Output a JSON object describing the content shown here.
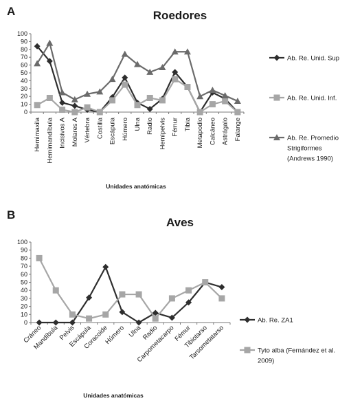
{
  "chart_data": [
    {
      "panel": "A",
      "type": "line",
      "title": "Roedores",
      "xlabel": "Unidades anatómicas",
      "ylabel": "",
      "ylim": [
        0,
        100
      ],
      "yticks": [
        0,
        10,
        20,
        30,
        40,
        50,
        60,
        70,
        80,
        90,
        100
      ],
      "grid": false,
      "legend_position": "right",
      "categories": [
        "Hemimaxila",
        "Hemimandíbula",
        "Incisivos A",
        "Molares A",
        "Vértebra",
        "Costilla",
        "Escápula",
        "Húmero",
        "Ulna",
        "Radio",
        "Hemipelvis",
        "Fémur",
        "Tibia",
        "Metapodio",
        "Calcáneo",
        "Astrágalo",
        "Falange"
      ],
      "series": [
        {
          "name": "Ab. Re. Unid. Sup",
          "marker": "diamond",
          "color": "#2e2e2e",
          "values": [
            84,
            65,
            12,
            8,
            3,
            0,
            19,
            44,
            12,
            4,
            17,
            51,
            32,
            0,
            25,
            17,
            0
          ]
        },
        {
          "name": "Ab. Re. Unid. Inf.",
          "marker": "square",
          "color": "#a6a6a6",
          "values": [
            9,
            18,
            3,
            0,
            6,
            0,
            15,
            35,
            9,
            18,
            15,
            42,
            32,
            0,
            10,
            14,
            0
          ]
        },
        {
          "name": "Ab. Re. Promedio Strigiformes (Andrews 1990)",
          "marker": "triangle",
          "color": "#6b6b6b",
          "values": [
            62,
            88,
            25,
            16,
            23,
            26,
            42,
            74,
            61,
            51,
            57,
            77,
            77,
            20,
            28,
            21,
            14
          ]
        }
      ]
    },
    {
      "panel": "B",
      "type": "line",
      "title": "Aves",
      "xlabel": "Unidades anatómicas",
      "ylabel": "",
      "ylim": [
        0,
        100
      ],
      "yticks": [
        0,
        10,
        20,
        30,
        40,
        50,
        60,
        70,
        80,
        90,
        100
      ],
      "grid": false,
      "legend_position": "right",
      "categories": [
        "Cráneo",
        "Mandíbula",
        "Pelvis",
        "Escápula",
        "Coracoide",
        "Húmero",
        "Ulna",
        "Radio",
        "Carpometacarpo",
        "Fémur",
        "Tibiotarso",
        "Tarsometatarso"
      ],
      "series": [
        {
          "name": "Ab. Re. ZA1",
          "marker": "diamond",
          "color": "#2e2e2e",
          "values": [
            0,
            0,
            0,
            31,
            69,
            13,
            0,
            12,
            6,
            25,
            50,
            44
          ]
        },
        {
          "name": "Tyto alba (Fernández et al. 2009)",
          "marker": "square",
          "color": "#a6a6a6",
          "values": [
            80,
            40,
            10,
            5,
            10,
            35,
            35,
            5,
            30,
            40,
            50,
            30
          ]
        }
      ]
    }
  ]
}
